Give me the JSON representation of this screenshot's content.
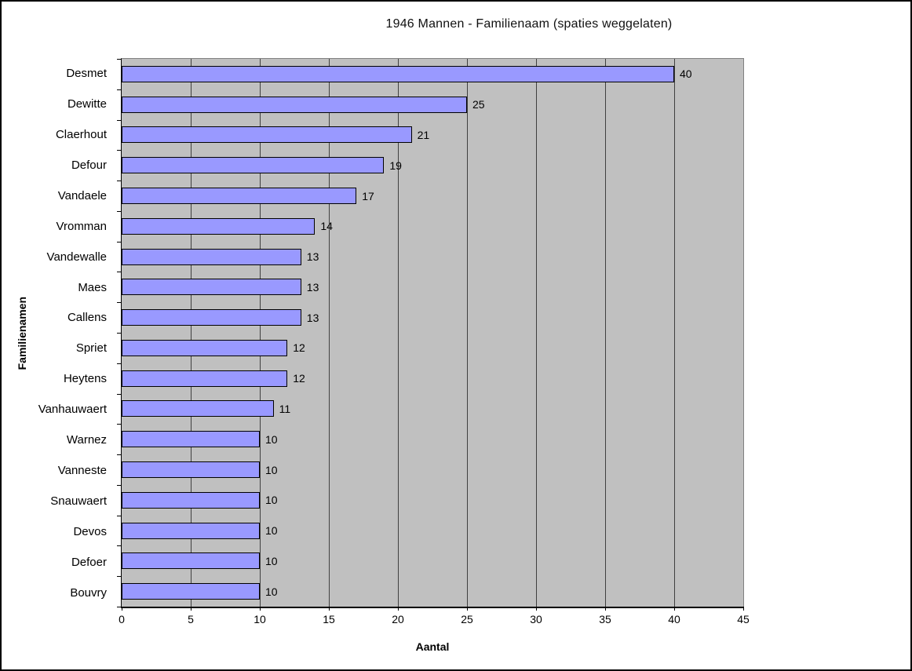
{
  "chart_data": {
    "type": "bar",
    "orientation": "horizontal",
    "title": "1946 Mannen - Familienaam (spaties weggelaten)",
    "xlabel": "Aantal",
    "ylabel": "Familienamen",
    "xlim": [
      0,
      45
    ],
    "xticks": [
      0,
      5,
      10,
      15,
      20,
      25,
      30,
      35,
      40,
      45
    ],
    "grid": true,
    "legend": "none",
    "categories": [
      "Desmet",
      "Dewitte",
      "Claerhout",
      "Defour",
      "Vandaele",
      "Vromman",
      "Vandewalle",
      "Maes",
      "Callens",
      "Spriet",
      "Heytens",
      "Vanhauwaert",
      "Warnez",
      "Vanneste",
      "Snauwaert",
      "Devos",
      "Defoer",
      "Bouvry"
    ],
    "values": [
      40,
      25,
      21,
      19,
      17,
      14,
      13,
      13,
      13,
      12,
      12,
      11,
      10,
      10,
      10,
      10,
      10,
      10
    ],
    "data_labels_shown": true,
    "colors": {
      "bar_fill": "#9999FF",
      "bar_border": "#000000",
      "plot_background": "#C0C0C0",
      "gridline": "#404040",
      "axis": "#000000",
      "plot_border": "#808080",
      "text": "#000000"
    }
  }
}
